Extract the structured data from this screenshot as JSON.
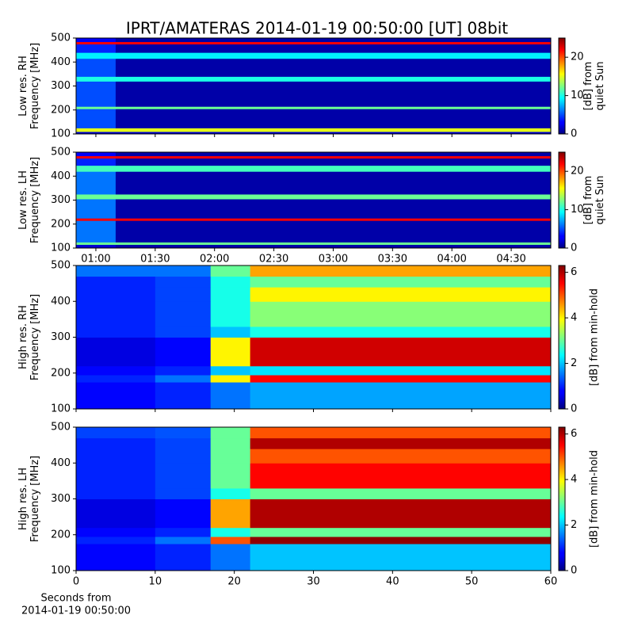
{
  "title": "IPRT/AMATERAS 2014-01-19 00:50:00 [UT]   08bit",
  "chart_data": [
    {
      "type": "heatmap",
      "ylabel": [
        "Low res. RH",
        "Frequency [MHz]"
      ],
      "colorbar_label": [
        "[dB] from",
        "quiet Sun"
      ],
      "xlim": [
        0,
        240
      ],
      "ylim": [
        100,
        500
      ],
      "yticks": [
        100,
        200,
        300,
        400,
        500
      ],
      "clim": [
        0,
        25
      ],
      "cticks": [
        0,
        10,
        20
      ],
      "x": [
        0,
        20,
        240
      ],
      "y": [
        100,
        110,
        125,
        205,
        215,
        320,
        340,
        415,
        440,
        475,
        485,
        500
      ],
      "z": [
        [
          2,
          2
        ],
        [
          15,
          15
        ],
        [
          5,
          1
        ],
        [
          12,
          12
        ],
        [
          5,
          1
        ],
        [
          10,
          10
        ],
        [
          5,
          1
        ],
        [
          9,
          9
        ],
        [
          4,
          1
        ],
        [
          22,
          22
        ],
        [
          3,
          1
        ]
      ]
    },
    {
      "type": "heatmap",
      "ylabel": [
        "Low res. LH",
        "Frequency [MHz]"
      ],
      "colorbar_label": [
        "[dB] from",
        "quiet Sun"
      ],
      "xlim": [
        0,
        240
      ],
      "ylim": [
        100,
        500
      ],
      "yticks": [
        100,
        200,
        300,
        400,
        500
      ],
      "xticks": [
        {
          "value": 10,
          "label": "01:00"
        },
        {
          "value": 40,
          "label": "01:30"
        },
        {
          "value": 70,
          "label": "02:00"
        },
        {
          "value": 100,
          "label": "02:30"
        },
        {
          "value": 130,
          "label": "03:00"
        },
        {
          "value": 160,
          "label": "03:30"
        },
        {
          "value": 190,
          "label": "04:00"
        },
        {
          "value": 220,
          "label": "04:30"
        }
      ],
      "clim": [
        0,
        25
      ],
      "cticks": [
        0,
        10,
        20
      ],
      "x": [
        0,
        20,
        240
      ],
      "y": [
        100,
        115,
        125,
        215,
        225,
        305,
        325,
        420,
        445,
        475,
        485,
        500
      ],
      "z": [
        [
          2,
          1
        ],
        [
          12,
          12
        ],
        [
          6,
          1
        ],
        [
          22,
          22
        ],
        [
          6,
          1
        ],
        [
          12,
          12
        ],
        [
          6,
          1
        ],
        [
          11,
          11
        ],
        [
          4,
          1
        ],
        [
          22,
          22
        ],
        [
          3,
          1
        ]
      ]
    },
    {
      "type": "heatmap",
      "ylabel": [
        "High res. RH",
        "Frequency [MHz]"
      ],
      "colorbar_label": [
        "[dB] from min-hold"
      ],
      "xlim": [
        0,
        60
      ],
      "ylim": [
        100,
        500
      ],
      "yticks": [
        100,
        200,
        300,
        400,
        500
      ],
      "clim": [
        0,
        6.3
      ],
      "cticks": [
        0,
        2,
        4,
        6
      ],
      "x": [
        0,
        10,
        17,
        22,
        60
      ],
      "y": [
        100,
        175,
        195,
        220,
        300,
        330,
        400,
        440,
        470,
        500
      ],
      "z": [
        [
          0.8,
          1,
          1.5,
          1.8
        ],
        [
          1,
          1.5,
          4,
          5.5
        ],
        [
          0.8,
          1,
          2,
          2.2
        ],
        [
          0.6,
          0.8,
          4,
          5.8
        ],
        [
          1,
          1.2,
          2,
          2.5
        ],
        [
          1,
          1.2,
          2.5,
          3.2
        ],
        [
          1,
          1.2,
          2.5,
          4
        ],
        [
          1,
          1.2,
          2.5,
          3
        ],
        [
          1.5,
          1.5,
          3,
          4.5
        ]
      ]
    },
    {
      "type": "heatmap",
      "ylabel": [
        "High res. LH",
        "Frequency [MHz]"
      ],
      "colorbar_label": [
        "[dB] from min-hold"
      ],
      "xlim": [
        0,
        60
      ],
      "ylim": [
        100,
        500
      ],
      "yticks": [
        100,
        200,
        300,
        400,
        500
      ],
      "xticks": [
        0,
        10,
        20,
        30,
        40,
        50,
        60
      ],
      "xlabel": [
        "Seconds from",
        "2014-01-19 00:50:00"
      ],
      "clim": [
        0,
        6.3
      ],
      "cticks": [
        0,
        2,
        4,
        6
      ],
      "x": [
        0,
        10,
        17,
        22,
        60
      ],
      "y": [
        100,
        175,
        195,
        220,
        300,
        330,
        400,
        440,
        470,
        500
      ],
      "z": [
        [
          0.8,
          1,
          1.5,
          2
        ],
        [
          1,
          1.5,
          5,
          6.2
        ],
        [
          0.8,
          1,
          2.5,
          3
        ],
        [
          0.6,
          0.8,
          4.5,
          6
        ],
        [
          1,
          1.2,
          2.5,
          3
        ],
        [
          1,
          1.2,
          3,
          5.5
        ],
        [
          1,
          1.2,
          3,
          5
        ],
        [
          1,
          1.2,
          3,
          6
        ],
        [
          1.2,
          1.3,
          3,
          5
        ]
      ]
    }
  ]
}
